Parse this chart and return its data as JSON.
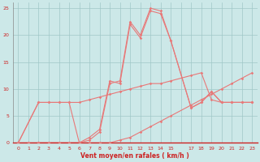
{
  "background_color": "#cce8e8",
  "grid_color": "#a0c8c8",
  "line_color": "#e87878",
  "xlabel": "Vent moyen/en rafales ( km/h )",
  "tick_color": "#cc2222",
  "ylim": [
    0,
    26
  ],
  "xlim": [
    -0.5,
    23.5
  ],
  "xtick_labels": [
    "0",
    "1",
    "2",
    "3",
    "4",
    "5",
    "6",
    "7",
    "8",
    "9",
    "10",
    "11",
    "12",
    "13",
    "14",
    "15",
    "",
    "17",
    "18",
    "19",
    "20",
    "21",
    "22",
    "23"
  ],
  "xtick_positions": [
    0,
    1,
    2,
    3,
    4,
    5,
    6,
    7,
    8,
    9,
    10,
    11,
    12,
    13,
    14,
    15,
    16,
    17,
    18,
    19,
    20,
    21,
    22,
    23
  ],
  "yticks": [
    0,
    5,
    10,
    15,
    20,
    25
  ],
  "s1_x": [
    0,
    1,
    2,
    3,
    4,
    5,
    6,
    7,
    8,
    9,
    10,
    11,
    12,
    13,
    14,
    15,
    17,
    18,
    19,
    20,
    21,
    22,
    23
  ],
  "s1_y": [
    0,
    0,
    0,
    0,
    0,
    0,
    0,
    0,
    0,
    0,
    0.5,
    1,
    2,
    3,
    4,
    5,
    7,
    8,
    9,
    10,
    11,
    12,
    13
  ],
  "s2_x": [
    0,
    2,
    3,
    4,
    5,
    6,
    7,
    8,
    9,
    10,
    11,
    12,
    13,
    14,
    15,
    17,
    18,
    19,
    20,
    21,
    22,
    23
  ],
  "s2_y": [
    0,
    7.5,
    7.5,
    7.5,
    7.5,
    7.5,
    8,
    8.5,
    9,
    9.5,
    10,
    10.5,
    11,
    11,
    11.5,
    12.5,
    13,
    8,
    7.5,
    7.5,
    7.5,
    7.5
  ],
  "s3_x": [
    0,
    2,
    3,
    4,
    5,
    6,
    7,
    8,
    9,
    10,
    11,
    12,
    13,
    14,
    15,
    17,
    18,
    19,
    20,
    21,
    22,
    23
  ],
  "s3_y": [
    0,
    7.5,
    7.5,
    7.5,
    7.5,
    0,
    1,
    2.5,
    11.5,
    11,
    22,
    19.5,
    24.5,
    24,
    19,
    6.5,
    7.5,
    9.5,
    7.5,
    7.5,
    7.5,
    7.5
  ],
  "s4_x": [
    2,
    6,
    7,
    8,
    9,
    10,
    11,
    12,
    13,
    14,
    15,
    17,
    18,
    19,
    20,
    21,
    22,
    23
  ],
  "s4_y": [
    0,
    0,
    0.5,
    2,
    11,
    11.5,
    22.5,
    20,
    25,
    24.5,
    19,
    6.5,
    7.5,
    9.5,
    7.5,
    7.5,
    7.5,
    7.5
  ]
}
